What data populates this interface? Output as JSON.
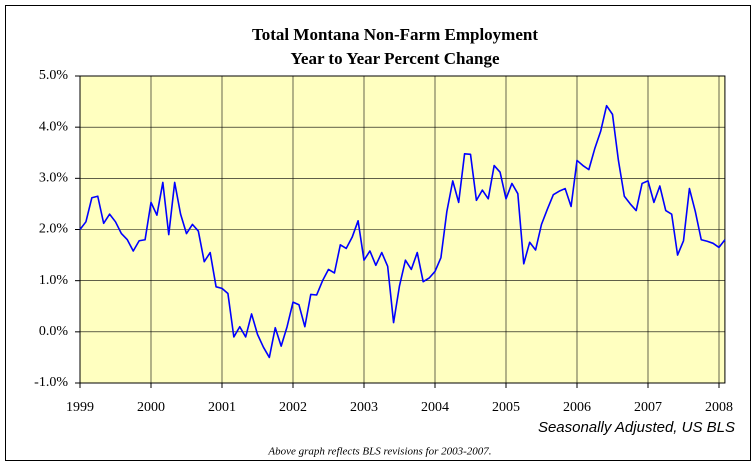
{
  "chart_data": {
    "type": "line",
    "title": "Total Montana Non-Farm Employment",
    "subtitle": "Year to Year Percent Change",
    "annotations": [
      "Seasonally Adjusted, US BLS",
      "Above graph reflects  BLS revisions  for 2003-2007."
    ],
    "categories": [
      "1999",
      null,
      null,
      null,
      null,
      null,
      null,
      null,
      null,
      null,
      null,
      null,
      "2000",
      null,
      null,
      null,
      null,
      null,
      null,
      null,
      null,
      null,
      null,
      null,
      "2001",
      null,
      null,
      null,
      null,
      null,
      null,
      null,
      null,
      null,
      null,
      null,
      "2002",
      null,
      null,
      null,
      null,
      null,
      null,
      null,
      null,
      null,
      null,
      null,
      "2003",
      null,
      null,
      null,
      null,
      null,
      null,
      null,
      null,
      null,
      null,
      null,
      "2004",
      null,
      null,
      null,
      null,
      null,
      null,
      null,
      null,
      null,
      null,
      null,
      "2005",
      null,
      null,
      null,
      null,
      null,
      null,
      null,
      null,
      null,
      null,
      null,
      "2006",
      null,
      null,
      null,
      null,
      null,
      null,
      null,
      null,
      null,
      null,
      null,
      "2007",
      null,
      null,
      null,
      null,
      null,
      null,
      null,
      null,
      null,
      null,
      null,
      "2008",
      null
    ],
    "values": [
      2.0,
      2.15,
      2.62,
      2.65,
      2.12,
      2.3,
      2.15,
      1.92,
      1.8,
      1.58,
      1.78,
      1.8,
      2.53,
      2.28,
      2.92,
      1.9,
      2.92,
      2.3,
      1.92,
      2.1,
      1.97,
      1.37,
      1.55,
      0.88,
      0.85,
      0.75,
      -0.1,
      0.1,
      -0.1,
      0.35,
      -0.05,
      -0.3,
      -0.5,
      0.08,
      -0.28,
      0.1,
      0.58,
      0.53,
      0.1,
      0.73,
      0.72,
      1.0,
      1.22,
      1.15,
      1.7,
      1.63,
      1.85,
      2.17,
      1.4,
      1.58,
      1.3,
      1.55,
      1.28,
      0.18,
      0.9,
      1.4,
      1.22,
      1.55,
      0.98,
      1.05,
      1.18,
      1.45,
      2.35,
      2.95,
      2.53,
      3.48,
      3.47,
      2.57,
      2.77,
      2.6,
      3.25,
      3.12,
      2.6,
      2.9,
      2.7,
      1.33,
      1.75,
      1.6,
      2.1,
      2.4,
      2.68,
      2.75,
      2.8,
      2.45,
      3.35,
      3.25,
      3.17,
      3.58,
      3.92,
      4.42,
      4.25,
      3.35,
      2.65,
      2.5,
      2.37,
      2.9,
      2.95,
      2.53,
      2.85,
      2.37,
      2.3,
      1.5,
      1.78,
      2.8,
      2.35,
      1.8,
      1.77,
      1.73,
      1.65,
      1.8
    ],
    "color": "#0000ff",
    "ylim": [
      -1,
      5
    ],
    "yticks": [
      {
        "value": -1,
        "label": "-1.0%"
      },
      {
        "value": 0,
        "label": "0.0%"
      },
      {
        "value": 1,
        "label": "1.0%"
      },
      {
        "value": 2,
        "label": "2.0%"
      },
      {
        "value": 3,
        "label": "3.0%"
      },
      {
        "value": 4,
        "label": "4.0%"
      },
      {
        "value": 5,
        "label": "5.0%"
      }
    ],
    "grid": true,
    "plot_background": "#ffffc0"
  }
}
